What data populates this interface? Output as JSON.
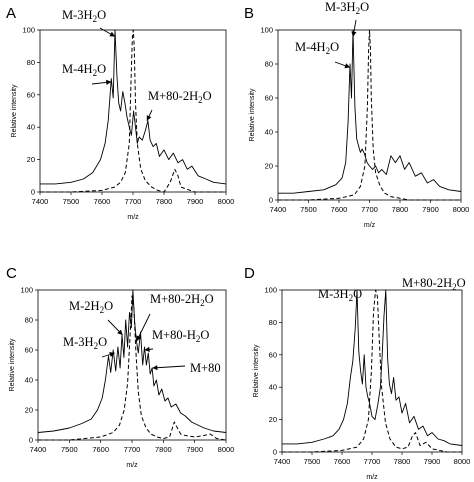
{
  "chart_data": [
    {
      "panel": "A",
      "type": "line",
      "xlabel": "m/z",
      "ylabel": "Relative intensity",
      "xlim": [
        7400,
        8000
      ],
      "ylim": [
        0,
        100
      ],
      "xticks": [
        7400,
        7500,
        7600,
        7700,
        7800,
        7900,
        8000
      ],
      "yticks": [
        0,
        20,
        40,
        60,
        80,
        100
      ],
      "series": [
        {
          "style": "solid",
          "x": [
            7400,
            7450,
            7500,
            7540,
            7570,
            7595,
            7610,
            7620,
            7630,
            7636,
            7642,
            7648,
            7654,
            7660,
            7667,
            7674,
            7681,
            7688,
            7695,
            7702,
            7708,
            7714,
            7720,
            7730,
            7740,
            7748,
            7755,
            7765,
            7775,
            7785,
            7800,
            7815,
            7830,
            7845,
            7860,
            7875,
            7890,
            7910,
            7935,
            7960,
            8000
          ],
          "y": [
            5,
            5,
            6,
            8,
            12,
            20,
            30,
            44,
            70,
            58,
            100,
            72,
            55,
            50,
            62,
            55,
            46,
            40,
            35,
            50,
            40,
            30,
            34,
            32,
            38,
            44,
            32,
            28,
            30,
            22,
            26,
            20,
            24,
            18,
            20,
            14,
            16,
            10,
            8,
            6,
            5
          ]
        },
        {
          "style": "dashed",
          "x": [
            7400,
            7500,
            7600,
            7640,
            7660,
            7675,
            7688,
            7694,
            7698,
            7701,
            7704,
            7708,
            7714,
            7725,
            7740,
            7760,
            7780,
            7800,
            7820,
            7835,
            7845,
            7855,
            7870,
            7900,
            7950,
            8000
          ],
          "y": [
            0,
            0,
            1,
            3,
            6,
            12,
            30,
            70,
            96,
            100,
            90,
            55,
            30,
            14,
            7,
            3,
            1,
            0,
            6,
            14,
            10,
            3,
            2,
            0,
            0,
            0
          ]
        }
      ],
      "annotations": [
        {
          "main": "M-3H",
          "sub": "2",
          "tail": "O"
        },
        {
          "main": "M-4H",
          "sub": "2",
          "tail": "O"
        },
        {
          "main": "M+80-2H",
          "sub": "2",
          "tail": "O"
        }
      ]
    },
    {
      "panel": "B",
      "type": "line",
      "xlabel": "m/z",
      "ylabel": "Relative intensity",
      "xlim": [
        7400,
        8000
      ],
      "ylim": [
        0,
        100
      ],
      "xticks": [
        7400,
        7500,
        7600,
        7700,
        7800,
        7900,
        8000
      ],
      "yticks": [
        0,
        20,
        40,
        60,
        80,
        100
      ],
      "series": [
        {
          "style": "solid",
          "x": [
            7400,
            7450,
            7500,
            7550,
            7590,
            7610,
            7622,
            7630,
            7636,
            7641,
            7646,
            7652,
            7658,
            7664,
            7670,
            7676,
            7684,
            7692,
            7700,
            7710,
            7720,
            7730,
            7740,
            7755,
            7770,
            7785,
            7800,
            7815,
            7830,
            7850,
            7870,
            7890,
            7910,
            7930,
            7960,
            8000
          ],
          "y": [
            4,
            4,
            5,
            6,
            9,
            13,
            22,
            46,
            80,
            60,
            100,
            55,
            36,
            32,
            28,
            30,
            27,
            22,
            20,
            18,
            20,
            16,
            18,
            15,
            26,
            22,
            26,
            18,
            22,
            14,
            16,
            10,
            12,
            8,
            6,
            5
          ]
        },
        {
          "style": "dashed",
          "x": [
            7400,
            7500,
            7600,
            7650,
            7670,
            7685,
            7693,
            7697,
            7700,
            7703,
            7706,
            7712,
            7720,
            7735,
            7750,
            7770,
            7800,
            7830,
            7860,
            7900,
            8000
          ],
          "y": [
            0,
            0,
            1,
            3,
            8,
            20,
            55,
            88,
            100,
            90,
            60,
            30,
            16,
            8,
            4,
            2,
            1,
            0,
            0,
            0,
            0
          ]
        }
      ],
      "annotations": [
        {
          "main": "M-3H",
          "sub": "2",
          "tail": "O"
        },
        {
          "main": "M-4H",
          "sub": "2",
          "tail": "O"
        }
      ]
    },
    {
      "panel": "C",
      "type": "line",
      "xlabel": "m/z",
      "ylabel": "Relative intensity",
      "xlim": [
        7400,
        8000
      ],
      "ylim": [
        0,
        100
      ],
      "xticks": [
        7400,
        7500,
        7600,
        7700,
        7800,
        7900,
        8000
      ],
      "yticks": [
        0,
        20,
        40,
        60,
        80,
        100
      ],
      "series": [
        {
          "style": "solid",
          "x": [
            7400,
            7450,
            7500,
            7540,
            7570,
            7590,
            7605,
            7615,
            7625,
            7632,
            7640,
            7648,
            7655,
            7662,
            7668,
            7674,
            7680,
            7686,
            7692,
            7698,
            7703,
            7708,
            7714,
            7720,
            7727,
            7734,
            7740,
            7746,
            7752,
            7758,
            7764,
            7770,
            7778,
            7786,
            7795,
            7805,
            7815,
            7825,
            7840,
            7855,
            7870,
            7890,
            7910,
            7930,
            7960,
            8000
          ],
          "y": [
            5,
            6,
            8,
            11,
            14,
            20,
            28,
            40,
            56,
            45,
            60,
            46,
            62,
            48,
            70,
            55,
            80,
            62,
            85,
            75,
            100,
            80,
            66,
            58,
            72,
            50,
            62,
            50,
            58,
            44,
            48,
            36,
            40,
            30,
            34,
            26,
            28,
            22,
            24,
            18,
            16,
            12,
            10,
            8,
            6,
            5
          ]
        },
        {
          "style": "dashed",
          "x": [
            7400,
            7500,
            7600,
            7640,
            7660,
            7675,
            7686,
            7694,
            7700,
            7706,
            7712,
            7720,
            7730,
            7745,
            7760,
            7780,
            7800,
            7820,
            7835,
            7845,
            7855,
            7870,
            7900,
            7930,
            7950,
            7970,
            8000
          ],
          "y": [
            0,
            0,
            2,
            5,
            10,
            20,
            38,
            70,
            96,
            88,
            60,
            32,
            16,
            8,
            4,
            2,
            1,
            2,
            12,
            8,
            4,
            3,
            2,
            3,
            4,
            1,
            0
          ]
        }
      ],
      "annotations": [
        {
          "main": "M-2H",
          "sub": "2",
          "tail": "O"
        },
        {
          "main": "M+80-2H",
          "sub": "2",
          "tail": "O"
        },
        {
          "main": "M+80-H",
          "sub": "2",
          "tail": "O"
        },
        {
          "main": "M-3H",
          "sub": "2",
          "tail": "O"
        },
        {
          "main": "M+80",
          "sub": "",
          "tail": ""
        }
      ]
    },
    {
      "panel": "D",
      "type": "line",
      "xlabel": "m/z",
      "ylabel": "Relative intensity",
      "xlim": [
        7400,
        8000
      ],
      "ylim": [
        0,
        100
      ],
      "xticks": [
        7400,
        7500,
        7600,
        7700,
        7800,
        7900,
        8000
      ],
      "yticks": [
        0,
        20,
        40,
        60,
        80,
        100
      ],
      "series": [
        {
          "style": "solid",
          "x": [
            7400,
            7450,
            7500,
            7540,
            7570,
            7590,
            7605,
            7618,
            7628,
            7636,
            7644,
            7650,
            7656,
            7662,
            7668,
            7674,
            7680,
            7686,
            7692,
            7700,
            7710,
            7720,
            7728,
            7734,
            7740,
            7746,
            7752,
            7758,
            7765,
            7772,
            7780,
            7790,
            7800,
            7812,
            7825,
            7840,
            7855,
            7870,
            7885,
            7900,
            7920,
            7940,
            7960,
            8000
          ],
          "y": [
            5,
            5,
            6,
            8,
            10,
            14,
            20,
            30,
            46,
            56,
            76,
            100,
            62,
            50,
            42,
            60,
            40,
            34,
            30,
            22,
            20,
            30,
            40,
            60,
            84,
            100,
            58,
            42,
            36,
            46,
            32,
            34,
            24,
            30,
            18,
            22,
            14,
            16,
            10,
            12,
            8,
            7,
            5,
            4
          ]
        },
        {
          "style": "dashed",
          "x": [
            7400,
            7500,
            7600,
            7650,
            7672,
            7688,
            7698,
            7705,
            7712,
            7718,
            7724,
            7732,
            7745,
            7760,
            7780,
            7800,
            7820,
            7835,
            7845,
            7860,
            7880,
            7900,
            7950,
            8000
          ],
          "y": [
            0,
            0,
            1,
            3,
            8,
            20,
            50,
            86,
            100,
            96,
            70,
            40,
            18,
            8,
            3,
            2,
            3,
            10,
            12,
            4,
            6,
            2,
            0,
            0
          ]
        }
      ],
      "annotations": [
        {
          "main": "M-3H",
          "sub": "2",
          "tail": "O"
        },
        {
          "main": "M+80-2H",
          "sub": "2",
          "tail": "O"
        }
      ]
    }
  ]
}
